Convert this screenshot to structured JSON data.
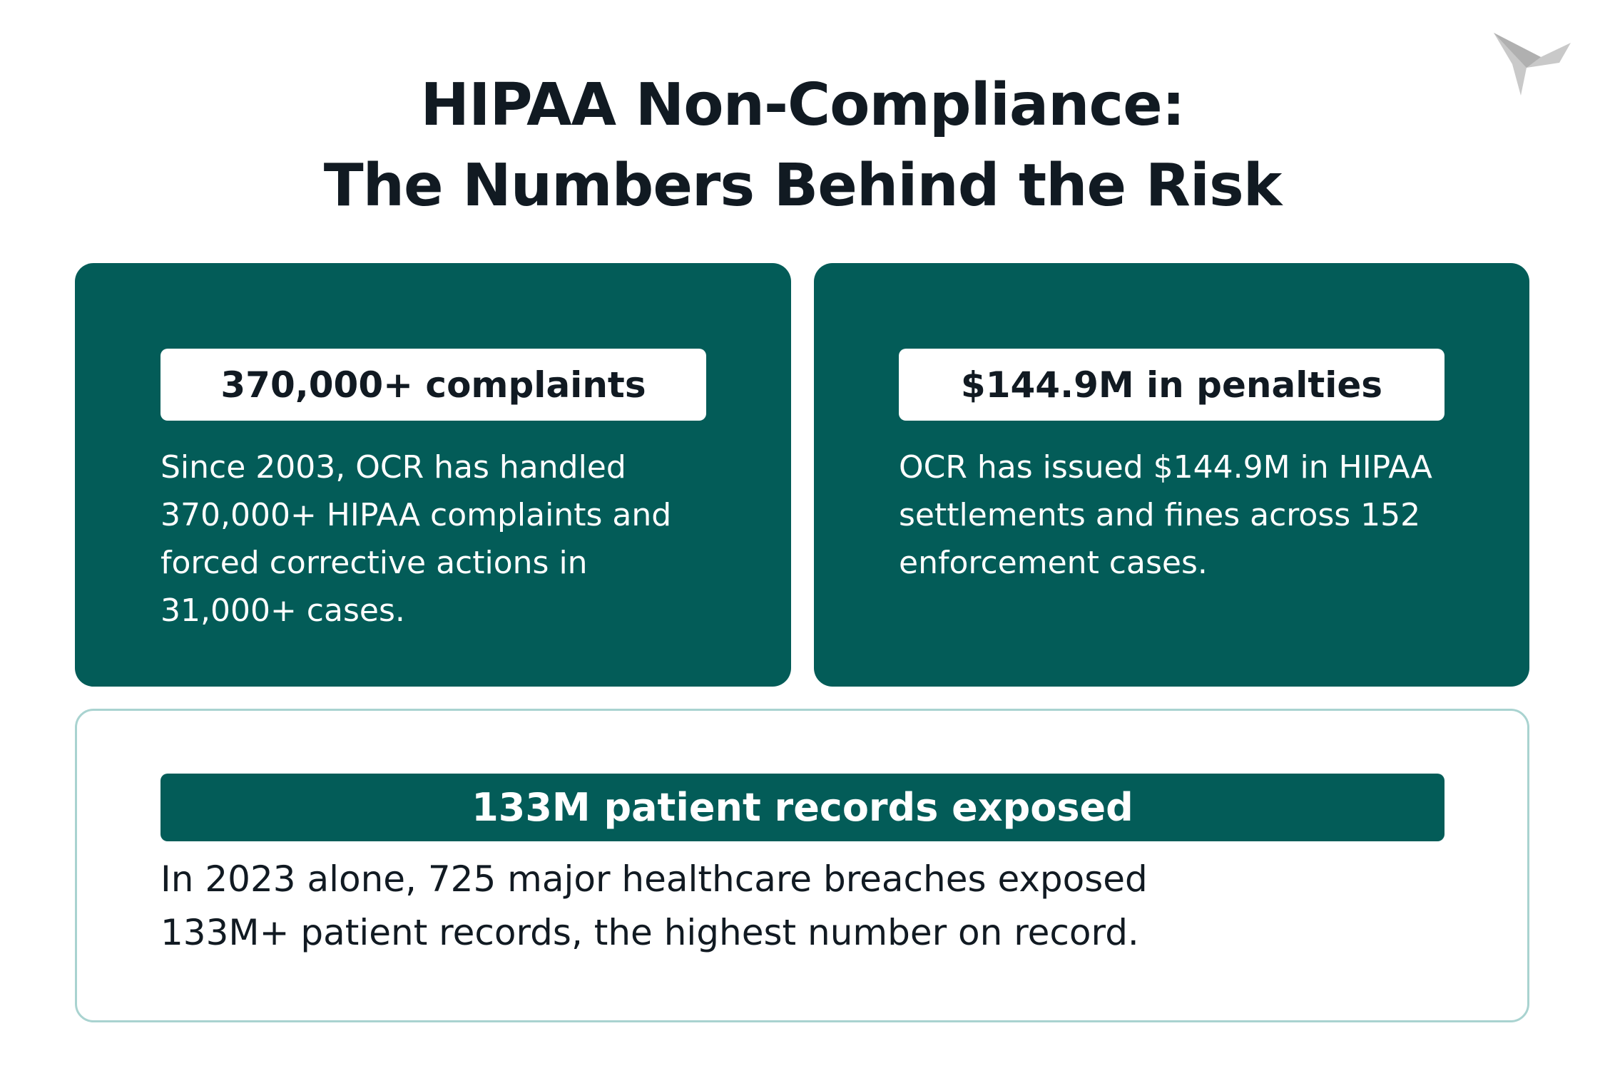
{
  "title": {
    "line1": "HIPAA Non-Compliance:",
    "line2": "The Numbers Behind the Risk"
  },
  "cards": [
    {
      "heading": "370,000+ complaints",
      "body": "Since 2003, OCR has handled 370,000+ HIPAA complaints and forced corrective actions in 31,000+ cases."
    },
    {
      "heading": "$144.9M in penalties",
      "body": "OCR has issued $144.9M in HIPAA settlements and fines across 152 enforcement cases."
    },
    {
      "heading": "133M patient records exposed",
      "body": "In 2023 alone, 725 major healthcare breaches exposed 133M+ patient records, the highest number on record."
    }
  ]
}
